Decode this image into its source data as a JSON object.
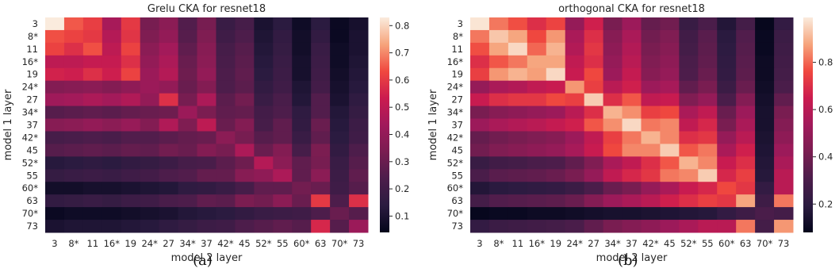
{
  "chart_data": [
    {
      "type": "heatmap",
      "title": "Grelu CKA for resnet18",
      "xlabel": "model 2 layer",
      "ylabel": "model 1 layer",
      "x_ticks": [
        "3",
        "8*",
        "11",
        "16*",
        "19",
        "24*",
        "27",
        "34*",
        "37",
        "42*",
        "45",
        "52*",
        "55",
        "60*",
        "63",
        "70*",
        "73"
      ],
      "y_ticks": [
        "3",
        "8*",
        "11",
        "16*",
        "19",
        "24*",
        "27",
        "34*",
        "37",
        "42*",
        "45",
        "52*",
        "55",
        "60*",
        "63",
        "70*",
        "73"
      ],
      "colorbar_ticks": [
        "0.1",
        "0.2",
        "0.3",
        "0.4",
        "0.5",
        "0.6",
        "0.7",
        "0.8"
      ],
      "vmin": 0.04,
      "vmax": 0.83,
      "colormap": "rocket",
      "values": [
        [
          0.83,
          0.65,
          0.61,
          0.45,
          0.6,
          0.33,
          0.38,
          0.25,
          0.33,
          0.18,
          0.22,
          0.1,
          0.14,
          0.07,
          0.14,
          0.06,
          0.09
        ],
        [
          0.64,
          0.62,
          0.6,
          0.48,
          0.59,
          0.35,
          0.4,
          0.26,
          0.35,
          0.2,
          0.24,
          0.11,
          0.16,
          0.08,
          0.16,
          0.06,
          0.1
        ],
        [
          0.62,
          0.58,
          0.64,
          0.5,
          0.62,
          0.38,
          0.44,
          0.28,
          0.37,
          0.22,
          0.26,
          0.12,
          0.17,
          0.08,
          0.18,
          0.07,
          0.1
        ],
        [
          0.5,
          0.5,
          0.52,
          0.52,
          0.58,
          0.4,
          0.46,
          0.3,
          0.38,
          0.23,
          0.27,
          0.13,
          0.18,
          0.09,
          0.19,
          0.07,
          0.11
        ],
        [
          0.55,
          0.54,
          0.58,
          0.54,
          0.62,
          0.42,
          0.48,
          0.31,
          0.4,
          0.24,
          0.28,
          0.14,
          0.19,
          0.09,
          0.2,
          0.08,
          0.12
        ],
        [
          0.36,
          0.37,
          0.38,
          0.36,
          0.39,
          0.42,
          0.4,
          0.3,
          0.36,
          0.24,
          0.27,
          0.16,
          0.2,
          0.11,
          0.21,
          0.09,
          0.13
        ],
        [
          0.43,
          0.44,
          0.46,
          0.44,
          0.47,
          0.4,
          0.58,
          0.33,
          0.46,
          0.27,
          0.32,
          0.18,
          0.23,
          0.12,
          0.25,
          0.1,
          0.15
        ],
        [
          0.26,
          0.27,
          0.28,
          0.27,
          0.29,
          0.3,
          0.31,
          0.42,
          0.34,
          0.28,
          0.29,
          0.21,
          0.24,
          0.15,
          0.25,
          0.12,
          0.17
        ],
        [
          0.37,
          0.38,
          0.4,
          0.38,
          0.41,
          0.36,
          0.47,
          0.35,
          0.5,
          0.3,
          0.36,
          0.22,
          0.28,
          0.16,
          0.3,
          0.13,
          0.19
        ],
        [
          0.22,
          0.23,
          0.24,
          0.23,
          0.25,
          0.25,
          0.27,
          0.29,
          0.3,
          0.38,
          0.33,
          0.26,
          0.28,
          0.18,
          0.28,
          0.14,
          0.2
        ],
        [
          0.26,
          0.27,
          0.28,
          0.27,
          0.29,
          0.28,
          0.32,
          0.3,
          0.36,
          0.33,
          0.46,
          0.3,
          0.36,
          0.22,
          0.34,
          0.16,
          0.24
        ],
        [
          0.13,
          0.14,
          0.15,
          0.14,
          0.16,
          0.17,
          0.19,
          0.22,
          0.23,
          0.27,
          0.31,
          0.48,
          0.38,
          0.28,
          0.33,
          0.18,
          0.26
        ],
        [
          0.17,
          0.18,
          0.19,
          0.18,
          0.2,
          0.21,
          0.24,
          0.25,
          0.29,
          0.29,
          0.37,
          0.39,
          0.46,
          0.28,
          0.38,
          0.19,
          0.28
        ],
        [
          0.08,
          0.08,
          0.09,
          0.09,
          0.1,
          0.11,
          0.12,
          0.15,
          0.16,
          0.18,
          0.22,
          0.28,
          0.28,
          0.32,
          0.3,
          0.2,
          0.26
        ],
        [
          0.16,
          0.17,
          0.18,
          0.17,
          0.19,
          0.2,
          0.23,
          0.24,
          0.28,
          0.27,
          0.34,
          0.32,
          0.38,
          0.3,
          0.6,
          0.24,
          0.58
        ],
        [
          0.06,
          0.07,
          0.07,
          0.07,
          0.08,
          0.09,
          0.1,
          0.12,
          0.13,
          0.14,
          0.16,
          0.18,
          0.19,
          0.2,
          0.24,
          0.3,
          0.26
        ],
        [
          0.1,
          0.11,
          0.11,
          0.11,
          0.12,
          0.13,
          0.15,
          0.17,
          0.19,
          0.2,
          0.24,
          0.26,
          0.28,
          0.26,
          0.56,
          0.26,
          0.42
        ]
      ]
    },
    {
      "type": "heatmap",
      "title": "orthogonal CKA for resnet18",
      "xlabel": "model 2 layer",
      "ylabel": "model 1 layer",
      "x_ticks": [
        "3",
        "8*",
        "11",
        "16*",
        "19",
        "24*",
        "27",
        "34*",
        "37",
        "42*",
        "45",
        "52*",
        "55",
        "60*",
        "63",
        "70*",
        "73"
      ],
      "y_ticks": [
        "3",
        "8*",
        "11",
        "16*",
        "19",
        "24*",
        "27",
        "34*",
        "37",
        "42*",
        "45",
        "52*",
        "55",
        "60*",
        "63",
        "70*",
        "73"
      ],
      "colorbar_ticks": [
        "0.2",
        "0.4",
        "0.6",
        "0.8"
      ],
      "vmin": 0.08,
      "vmax": 0.99,
      "colormap": "rocket",
      "values": [
        [
          0.98,
          0.82,
          0.77,
          0.7,
          0.75,
          0.5,
          0.66,
          0.42,
          0.52,
          0.37,
          0.4,
          0.24,
          0.3,
          0.17,
          0.28,
          0.09,
          0.22
        ],
        [
          0.82,
          0.93,
          0.88,
          0.76,
          0.86,
          0.56,
          0.7,
          0.46,
          0.56,
          0.4,
          0.44,
          0.27,
          0.34,
          0.19,
          0.32,
          0.1,
          0.25
        ],
        [
          0.77,
          0.88,
          0.96,
          0.8,
          0.9,
          0.58,
          0.72,
          0.48,
          0.58,
          0.42,
          0.46,
          0.28,
          0.35,
          0.2,
          0.33,
          0.1,
          0.26
        ],
        [
          0.7,
          0.78,
          0.82,
          0.88,
          0.88,
          0.62,
          0.7,
          0.5,
          0.6,
          0.44,
          0.48,
          0.3,
          0.36,
          0.21,
          0.34,
          0.11,
          0.27
        ],
        [
          0.74,
          0.86,
          0.9,
          0.87,
          0.96,
          0.64,
          0.76,
          0.52,
          0.63,
          0.46,
          0.5,
          0.31,
          0.38,
          0.22,
          0.35,
          0.11,
          0.28
        ],
        [
          0.5,
          0.56,
          0.58,
          0.62,
          0.64,
          0.86,
          0.74,
          0.6,
          0.66,
          0.52,
          0.55,
          0.36,
          0.42,
          0.25,
          0.38,
          0.12,
          0.3
        ],
        [
          0.64,
          0.7,
          0.72,
          0.72,
          0.76,
          0.74,
          0.94,
          0.7,
          0.78,
          0.62,
          0.64,
          0.44,
          0.5,
          0.3,
          0.45,
          0.13,
          0.36
        ],
        [
          0.42,
          0.46,
          0.48,
          0.5,
          0.52,
          0.6,
          0.7,
          0.9,
          0.85,
          0.74,
          0.76,
          0.56,
          0.62,
          0.38,
          0.52,
          0.14,
          0.42
        ],
        [
          0.52,
          0.56,
          0.58,
          0.6,
          0.63,
          0.66,
          0.78,
          0.85,
          0.96,
          0.82,
          0.84,
          0.62,
          0.68,
          0.42,
          0.56,
          0.14,
          0.45
        ],
        [
          0.37,
          0.4,
          0.42,
          0.44,
          0.46,
          0.52,
          0.62,
          0.74,
          0.82,
          0.9,
          0.84,
          0.7,
          0.72,
          0.5,
          0.6,
          0.15,
          0.48
        ],
        [
          0.4,
          0.44,
          0.46,
          0.48,
          0.5,
          0.55,
          0.64,
          0.76,
          0.84,
          0.84,
          0.94,
          0.78,
          0.82,
          0.56,
          0.66,
          0.16,
          0.52
        ],
        [
          0.24,
          0.27,
          0.28,
          0.3,
          0.31,
          0.36,
          0.44,
          0.56,
          0.62,
          0.7,
          0.78,
          0.9,
          0.84,
          0.64,
          0.7,
          0.17,
          0.56
        ],
        [
          0.3,
          0.34,
          0.35,
          0.36,
          0.38,
          0.42,
          0.5,
          0.62,
          0.68,
          0.72,
          0.82,
          0.84,
          0.94,
          0.68,
          0.74,
          0.18,
          0.6
        ],
        [
          0.17,
          0.19,
          0.2,
          0.21,
          0.22,
          0.25,
          0.3,
          0.38,
          0.42,
          0.5,
          0.56,
          0.64,
          0.68,
          0.76,
          0.72,
          0.22,
          0.6
        ],
        [
          0.28,
          0.32,
          0.33,
          0.34,
          0.35,
          0.38,
          0.45,
          0.52,
          0.56,
          0.6,
          0.66,
          0.7,
          0.74,
          0.72,
          0.88,
          0.26,
          0.82
        ],
        [
          0.09,
          0.1,
          0.1,
          0.11,
          0.11,
          0.12,
          0.13,
          0.14,
          0.14,
          0.15,
          0.16,
          0.17,
          0.18,
          0.22,
          0.26,
          0.3,
          0.28
        ],
        [
          0.22,
          0.25,
          0.26,
          0.27,
          0.28,
          0.3,
          0.36,
          0.42,
          0.45,
          0.48,
          0.52,
          0.56,
          0.6,
          0.6,
          0.82,
          0.28,
          0.86
        ]
      ]
    }
  ],
  "captions": [
    "(a)",
    "(b)"
  ]
}
